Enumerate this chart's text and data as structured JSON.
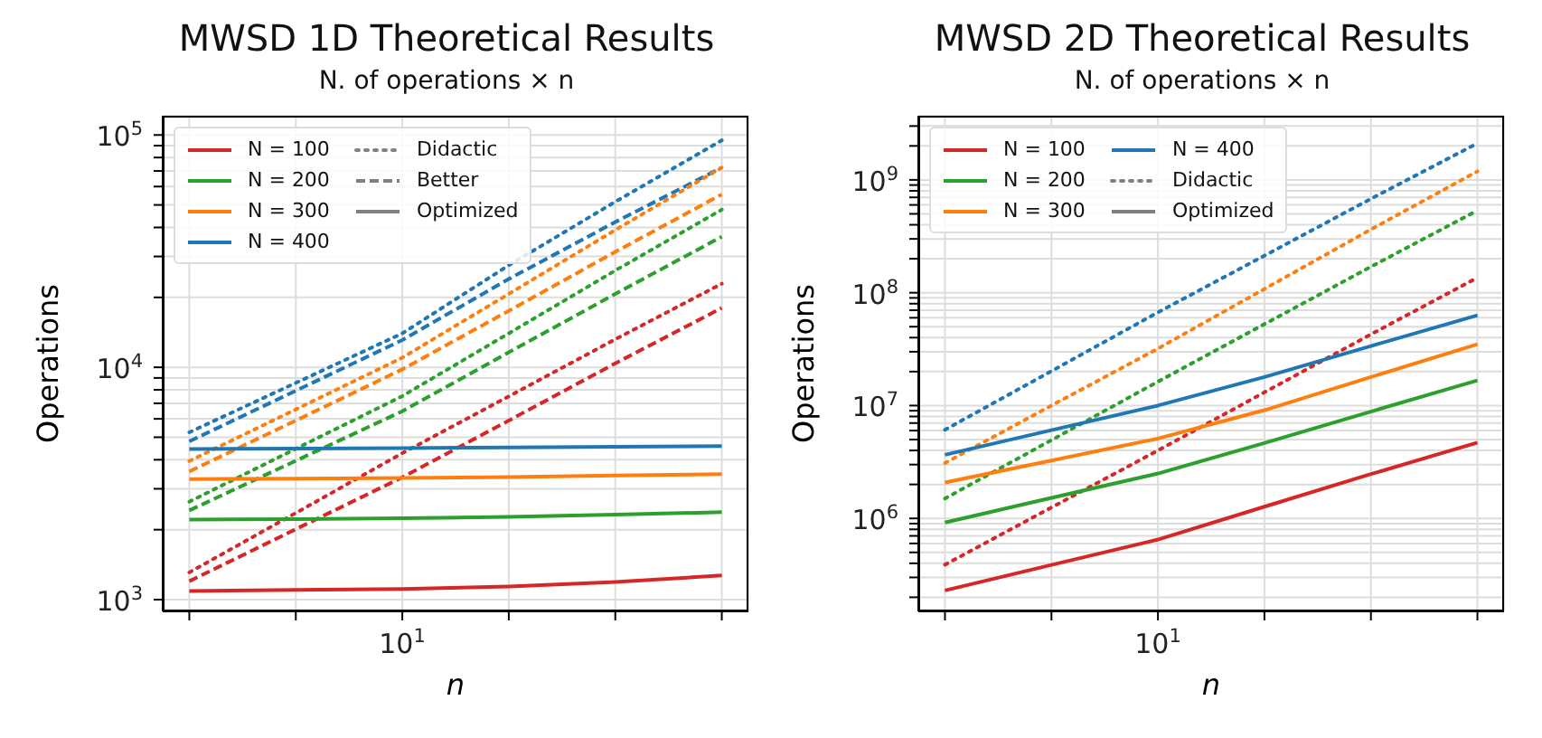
{
  "chart_data": [
    {
      "type": "line",
      "title": "MWSD 1D Theoretical Results",
      "subtitle": "N. of operations × n",
      "xlabel": "n",
      "ylabel": "Operations",
      "log": "y",
      "grid": true,
      "legend": "top left",
      "categories": [
        null,
        null,
        "10$^{1}$",
        null,
        null,
        null
      ],
      "ylim": [
        890,
        121000
      ],
      "yticks": [
        {
          "value": 1000,
          "label": "10$^{3}$"
        },
        {
          "value": 2000,
          "label": null
        },
        {
          "value": 3000,
          "label": null
        },
        {
          "value": 4000,
          "label": null
        },
        {
          "value": 5000,
          "label": null
        },
        {
          "value": 6000,
          "label": null
        },
        {
          "value": 7000,
          "label": null
        },
        {
          "value": 8000,
          "label": null
        },
        {
          "value": 9000,
          "label": null
        },
        {
          "value": 10000,
          "label": "10$^{4}$"
        },
        {
          "value": 20000,
          "label": null
        },
        {
          "value": 30000,
          "label": null
        },
        {
          "value": 40000,
          "label": null
        },
        {
          "value": 50000,
          "label": null
        },
        {
          "value": 60000,
          "label": null
        },
        {
          "value": 70000,
          "label": null
        },
        {
          "value": 80000,
          "label": null
        },
        {
          "value": 90000,
          "label": null
        },
        {
          "value": 100000,
          "label": "10$^{5}$"
        }
      ],
      "series": [
        {
          "name": "N = 100",
          "color": "#d62728",
          "line_style": "solid",
          "values": [
            null,
            null,
            null,
            null,
            null,
            null
          ]
        },
        {
          "name": "N = 200",
          "color": "#2ca02c",
          "line_style": "solid",
          "values": [
            null,
            null,
            null,
            null,
            null,
            null
          ]
        },
        {
          "name": "N = 300",
          "color": "#ff7f0e",
          "line_style": "solid",
          "values": [
            null,
            null,
            null,
            null,
            null,
            null
          ]
        },
        {
          "name": "N = 400",
          "color": "#1f77b4",
          "line_style": "solid",
          "values": [
            null,
            null,
            null,
            null,
            null,
            null
          ]
        },
        {
          "name": "Didactic",
          "color": "#808080",
          "line_style": "dotted",
          "values": [
            null,
            null,
            null,
            null,
            null,
            null
          ]
        },
        {
          "name": "Better",
          "color": "#808080",
          "line_style": "dashed",
          "values": [
            null,
            null,
            null,
            null,
            null,
            null
          ]
        },
        {
          "name": "Optimized",
          "color": "#808080",
          "line_style": "solid",
          "values": [
            null,
            null,
            null,
            null,
            null,
            null
          ]
        },
        {
          "color": "#1f77b4",
          "line_style": "dotted",
          "values": [
            5250,
            8570,
            14000,
            27500,
            51600,
            94800
          ]
        },
        {
          "color": "#1f77b4",
          "line_style": "dashed",
          "values": [
            4800,
            7930,
            13100,
            24000,
            42200,
            72400
          ]
        },
        {
          "color": "#ff7f0e",
          "line_style": "dotted",
          "values": [
            3950,
            6590,
            11000,
            20700,
            39000,
            72400
          ]
        },
        {
          "color": "#ff7f0e",
          "line_style": "dashed",
          "values": [
            3560,
            5900,
            9800,
            17500,
            31400,
            55500
          ]
        },
        {
          "color": "#2ca02c",
          "line_style": "dotted",
          "values": [
            2640,
            4460,
            7520,
            14000,
            26100,
            47700
          ]
        },
        {
          "color": "#2ca02c",
          "line_style": "dashed",
          "values": [
            2420,
            3960,
            6470,
            11600,
            20700,
            36500
          ]
        },
        {
          "color": "#d62728",
          "line_style": "dotted",
          "values": [
            1310,
            2360,
            4270,
            7500,
            13200,
            22900
          ]
        },
        {
          "color": "#d62728",
          "line_style": "dashed",
          "values": [
            1200,
            2010,
            3360,
            5900,
            10400,
            18000
          ]
        },
        {
          "color": "#1f77b4",
          "line_style": "solid",
          "values": [
            4450,
            4470,
            4490,
            4520,
            4550,
            4580
          ]
        },
        {
          "color": "#ff7f0e",
          "line_style": "solid",
          "values": [
            3300,
            3320,
            3340,
            3370,
            3420,
            3470
          ]
        },
        {
          "color": "#2ca02c",
          "line_style": "solid",
          "values": [
            2210,
            2220,
            2240,
            2270,
            2320,
            2380
          ]
        },
        {
          "color": "#d62728",
          "line_style": "solid",
          "values": [
            1090,
            1100,
            1110,
            1140,
            1190,
            1270
          ]
        }
      ]
    },
    {
      "type": "line",
      "title": "MWSD 2D Theoretical Results",
      "subtitle": "N. of operations × n",
      "xlabel": "n",
      "ylabel": "Operations",
      "log": "y",
      "grid": true,
      "legend": "top left",
      "categories": [
        null,
        null,
        "10$^{1}$",
        null,
        null,
        null
      ],
      "ylim": [
        150000,
        3700000000
      ],
      "yticks": [
        {
          "value": 200000,
          "label": null
        },
        {
          "value": 300000,
          "label": null
        },
        {
          "value": 400000,
          "label": null
        },
        {
          "value": 500000,
          "label": null
        },
        {
          "value": 600000,
          "label": null
        },
        {
          "value": 700000,
          "label": null
        },
        {
          "value": 800000,
          "label": null
        },
        {
          "value": 900000,
          "label": null
        },
        {
          "value": 1000000,
          "label": "10$^{6}$"
        },
        {
          "value": 2000000,
          "label": null
        },
        {
          "value": 3000000,
          "label": null
        },
        {
          "value": 4000000,
          "label": null
        },
        {
          "value": 5000000,
          "label": null
        },
        {
          "value": 6000000,
          "label": null
        },
        {
          "value": 7000000,
          "label": null
        },
        {
          "value": 8000000,
          "label": null
        },
        {
          "value": 9000000,
          "label": null
        },
        {
          "value": 10000000,
          "label": "10$^{7}$"
        },
        {
          "value": 20000000,
          "label": null
        },
        {
          "value": 30000000,
          "label": null
        },
        {
          "value": 40000000,
          "label": null
        },
        {
          "value": 50000000,
          "label": null
        },
        {
          "value": 60000000,
          "label": null
        },
        {
          "value": 70000000,
          "label": null
        },
        {
          "value": 80000000,
          "label": null
        },
        {
          "value": 90000000,
          "label": null
        },
        {
          "value": 100000000,
          "label": "10$^{8}$"
        },
        {
          "value": 200000000,
          "label": null
        },
        {
          "value": 300000000,
          "label": null
        },
        {
          "value": 400000000,
          "label": null
        },
        {
          "value": 500000000,
          "label": null
        },
        {
          "value": 600000000,
          "label": null
        },
        {
          "value": 700000000,
          "label": null
        },
        {
          "value": 800000000,
          "label": null
        },
        {
          "value": 900000000,
          "label": null
        },
        {
          "value": 1000000000,
          "label": "10$^{9}$"
        },
        {
          "value": 2000000000,
          "label": null
        },
        {
          "value": 3000000000,
          "label": null
        }
      ],
      "series": [
        {
          "name": "N = 100",
          "color": "#d62728",
          "line_style": "solid",
          "values": [
            null,
            null,
            null,
            null,
            null,
            null
          ]
        },
        {
          "name": "N = 200",
          "color": "#2ca02c",
          "line_style": "solid",
          "values": [
            null,
            null,
            null,
            null,
            null,
            null
          ]
        },
        {
          "name": "N = 300",
          "color": "#ff7f0e",
          "line_style": "solid",
          "values": [
            null,
            null,
            null,
            null,
            null,
            null
          ]
        },
        {
          "name": "N = 400",
          "color": "#1f77b4",
          "line_style": "solid",
          "values": [
            null,
            null,
            null,
            null,
            null,
            null
          ]
        },
        {
          "name": "Didactic",
          "color": "#808080",
          "line_style": "dotted",
          "values": [
            null,
            null,
            null,
            null,
            null,
            null
          ]
        },
        {
          "name": "Optimized",
          "color": "#808080",
          "line_style": "solid",
          "values": [
            null,
            null,
            null,
            null,
            null,
            null
          ]
        },
        {
          "color": "#1f77b4",
          "line_style": "dotted",
          "values": [
            6100000,
            20200000,
            67000000,
            213000000,
            680000000,
            2110000000
          ]
        },
        {
          "color": "#ff7f0e",
          "line_style": "dotted",
          "values": [
            3100000,
            10000000,
            32000000,
            108000000,
            364000000,
            1190000000
          ]
        },
        {
          "color": "#2ca02c",
          "line_style": "dotted",
          "values": [
            1500000,
            4940000,
            16300000,
            52700000,
            170000000,
            536000000
          ]
        },
        {
          "color": "#d62728",
          "line_style": "dotted",
          "values": [
            389000,
            1250000,
            4000000,
            13100000,
            42800000,
            136000000
          ]
        },
        {
          "color": "#1f77b4",
          "line_style": "solid",
          "values": [
            3660000,
            6050000,
            10000000,
            17900000,
            33700000,
            63000000
          ]
        },
        {
          "color": "#ff7f0e",
          "line_style": "solid",
          "values": [
            2080000,
            3260000,
            5100000,
            9100000,
            17900000,
            35000000
          ]
        },
        {
          "color": "#2ca02c",
          "line_style": "solid",
          "values": [
            920000,
            1520000,
            2500000,
            4650000,
            8850000,
            16700000
          ]
        },
        {
          "color": "#d62728",
          "line_style": "solid",
          "values": [
            230000,
            387000,
            650000,
            1270000,
            2470000,
            4700000
          ]
        }
      ]
    }
  ]
}
